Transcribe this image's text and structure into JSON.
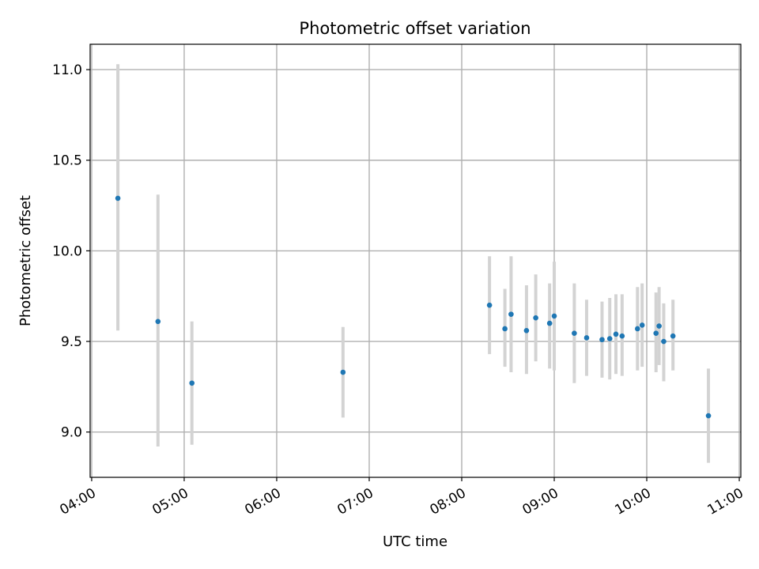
{
  "chart_data": {
    "type": "scatter",
    "title": "Photometric offset variation",
    "xlabel": "UTC time",
    "ylabel": "Photometric offset",
    "x_ticks": [
      "04:00",
      "05:00",
      "06:00",
      "07:00",
      "08:00",
      "09:00",
      "10:00",
      "11:00"
    ],
    "y_ticks": [
      "9.0",
      "9.5",
      "10.0",
      "10.5",
      "11.0"
    ],
    "xlim": [
      "03:59",
      "11:01"
    ],
    "ylim": [
      8.75,
      11.14
    ],
    "grid": true,
    "colors": {
      "point": "#1f77b4",
      "error_bar": "#d3d3d3",
      "grid": "#b0b0b0"
    },
    "series": [
      {
        "x": [
          "04:17",
          "04:43",
          "05:05",
          "06:43",
          "08:18",
          "08:28",
          "08:32",
          "08:42",
          "08:48",
          "08:57",
          "09:00",
          "09:13",
          "09:21",
          "09:31",
          "09:36",
          "09:40",
          "09:44",
          "09:54",
          "09:57",
          "10:06",
          "10:08",
          "10:11",
          "10:17",
          "10:40"
        ],
        "y": [
          10.29,
          9.61,
          9.27,
          9.33,
          9.7,
          9.57,
          9.65,
          9.56,
          9.63,
          9.6,
          9.64,
          9.545,
          9.52,
          9.51,
          9.515,
          9.54,
          9.53,
          9.57,
          9.59,
          9.545,
          9.585,
          9.5,
          9.53,
          9.09
        ],
        "err_low": [
          9.56,
          8.92,
          8.93,
          9.08,
          9.43,
          9.36,
          9.33,
          9.32,
          9.39,
          9.35,
          9.34,
          9.27,
          9.31,
          9.3,
          9.29,
          9.32,
          9.31,
          9.34,
          9.36,
          9.33,
          9.37,
          9.28,
          9.34,
          8.83
        ],
        "err_high": [
          11.03,
          10.31,
          9.61,
          9.58,
          9.97,
          9.79,
          9.97,
          9.81,
          9.87,
          9.82,
          9.94,
          9.82,
          9.73,
          9.72,
          9.74,
          9.76,
          9.76,
          9.8,
          9.82,
          9.77,
          9.8,
          9.71,
          9.73,
          9.35
        ]
      }
    ]
  }
}
